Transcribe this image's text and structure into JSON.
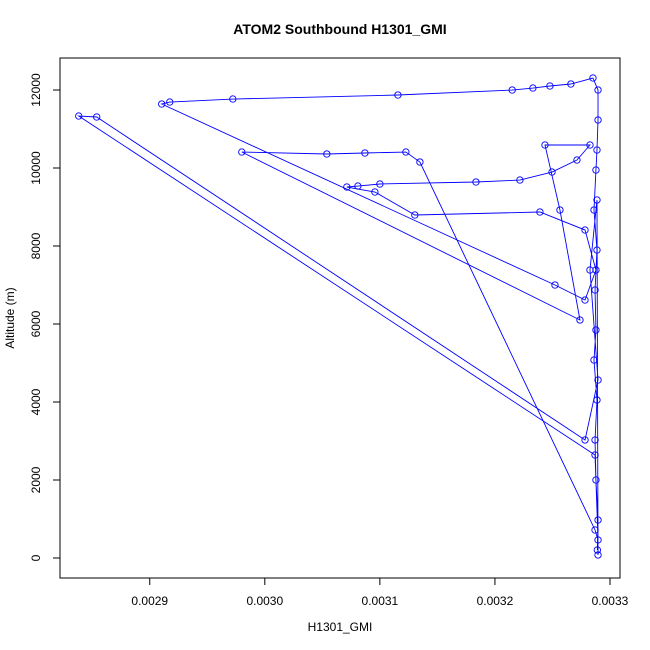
{
  "chart_data": {
    "type": "line",
    "title": "ATOM2 Southbound H1301_GMI",
    "x_label": "H1301_GMI",
    "y_label": "Altitude (m)",
    "x": [
      0.003289,
      0.0032896,
      0.0032878,
      0.003287,
      0.0032887,
      0.0032861,
      0.0032878,
      0.003287,
      0.0032887,
      0.0032861,
      0.0032878,
      0.0032887,
      0.0032896,
      0.0032896,
      0.0032852,
      0.003266,
      0.0032478,
      0.003233,
      0.003215,
      0.0031157,
      0.0029722,
      0.0029174,
      0.0029104,
      0.0032522,
      0.0032783,
      0.0032878,
      0.0032783,
      0.0032391,
      0.0031304,
      0.0030957,
      0.0030713,
      0.0030809,
      0.0031,
      0.0031835,
      0.0032217,
      0.0032496,
      0.0032713,
      0.0032826,
      0.0032435,
      0.0032565,
      0.0032739,
      0.00298,
      0.0030539,
      0.003087,
      0.0031226,
      0.0031348,
      0.003287,
      0.0032896,
      0.003287,
      0.0028383,
      0.0028539,
      0.0032783,
      0.0032896,
      0.0032826,
      0.0032887,
      0.0032896
    ],
    "values": [
      205,
      974,
      2000,
      3026,
      4051,
      5077,
      5846,
      6872,
      7897,
      8923,
      9949,
      10462,
      11231,
      12000,
      12308,
      12154,
      12103,
      12051,
      12000,
      11872,
      11769,
      11692,
      11641,
      7000,
      6615,
      7385,
      8410,
      8872,
      8795,
      9385,
      9513,
      9538,
      9590,
      9641,
      9692,
      9897,
      10205,
      10590,
      10590,
      8923,
      6103,
      10410,
      10359,
      10385,
      10410,
      10154,
      718,
      462,
      2641,
      11333,
      11308,
      3026,
      4564,
      7385,
      9180,
      77
    ],
    "color": "#0000ff",
    "xlim": [
      0.002822,
      0.0033087
    ],
    "ylim": [
      -513,
      12821
    ],
    "xticks": [
      0.0029,
      {
        "value": 0.003,
        "label": "0.0030"
      },
      0.0031,
      0.0032,
      0.0033
    ],
    "yticks": [
      0,
      2000,
      4000,
      6000,
      8000,
      10000,
      12000
    ]
  }
}
